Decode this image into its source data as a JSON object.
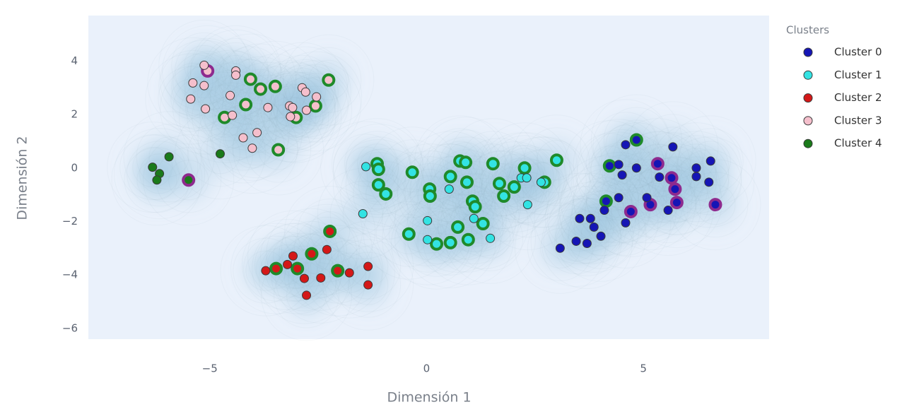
{
  "chart_data": {
    "type": "scatter",
    "x_label": "Dimensión 1",
    "y_label": "Dimensión 2",
    "legend_title": "Clusters",
    "xlim": [
      -7.8,
      7.9
    ],
    "ylim": [
      -6.4,
      5.7
    ],
    "xticks": [
      {
        "value": -5,
        "label": "−5"
      },
      0,
      5
    ],
    "yticks": [
      {
        "value": -6,
        "label": "−6"
      },
      {
        "value": -4,
        "label": "−4"
      },
      {
        "value": -2,
        "label": "−2"
      },
      0,
      2,
      4
    ],
    "grid": false,
    "legend": "right",
    "density_contours": true,
    "series": [
      {
        "name": "Cluster 0",
        "color": "#1515b5",
        "x": [
          4.59,
          4.84,
          4.22,
          4.43,
          4.51,
          4.84,
          5.68,
          5.33,
          5.65,
          5.37,
          6.22,
          6.55,
          6.22,
          6.51,
          5.73,
          5.77,
          6.66,
          5.16,
          4.71,
          4.14,
          4.43,
          5.08,
          4.1,
          3.78,
          3.53,
          3.86,
          4.59,
          4.02,
          3.7,
          3.45,
          3.08,
          5.57
        ],
        "y": [
          0.87,
          1.05,
          0.08,
          0.13,
          -0.26,
          0,
          0.79,
          0.16,
          -0.37,
          -0.34,
          0,
          0.26,
          -0.32,
          -0.53,
          -0.79,
          -1.29,
          -1.37,
          -1.37,
          -1.63,
          -1.24,
          -1.11,
          -1.11,
          -1.58,
          -1.89,
          -1.89,
          -2.21,
          -2.05,
          -2.55,
          -2.82,
          -2.74,
          -3.0,
          -1.58
        ],
        "rings": [
          null,
          "#1f8a2a",
          "#1f8a2a",
          null,
          null,
          null,
          null,
          "#8e2a8e",
          "#8e2a8e",
          null,
          null,
          null,
          null,
          null,
          "#8e2a8e",
          "#8e2a8e",
          "#8e2a8e",
          "#8e2a8e",
          "#8e2a8e",
          "#1f8a2a",
          null,
          null,
          null,
          null,
          null,
          null,
          null,
          null,
          null,
          null,
          null,
          null
        ]
      },
      {
        "name": "Cluster 1",
        "color": "#33e3e3",
        "x": [
          -1.14,
          -1.11,
          -0.33,
          0.07,
          0.08,
          -1.11,
          -0.94,
          0.55,
          0.77,
          0.9,
          0.93,
          1.53,
          1.68,
          1.78,
          2.02,
          2.26,
          2.72,
          3.0,
          1.06,
          1.12,
          1.3,
          0.72,
          -0.41,
          0.23,
          0.55,
          0.96,
          -1.4,
          0.52,
          2.18,
          2.31,
          2.33,
          -1.47,
          0.02,
          0.02,
          1.09,
          1.47,
          2.64
        ],
        "y": [
          0.16,
          -0.05,
          -0.16,
          -0.79,
          -1.05,
          -0.63,
          -0.97,
          -0.32,
          0.26,
          0.21,
          -0.53,
          0.16,
          -0.58,
          -1.05,
          -0.71,
          0,
          -0.53,
          0.29,
          -1.24,
          -1.45,
          -2.08,
          -2.21,
          -2.47,
          -2.84,
          -2.79,
          -2.68,
          0.05,
          -0.79,
          -0.37,
          -0.37,
          -1.37,
          -1.71,
          -1.97,
          -2.68,
          -1.89,
          -2.63,
          -0.53
        ],
        "rings": [
          "#1f8a2a",
          "#1f8a2a",
          "#1f8a2a",
          "#1f8a2a",
          "#1f8a2a",
          "#1f8a2a",
          "#1f8a2a",
          "#1f8a2a",
          "#1f8a2a",
          "#1f8a2a",
          "#1f8a2a",
          "#1f8a2a",
          "#1f8a2a",
          "#1f8a2a",
          "#1f8a2a",
          "#1f8a2a",
          "#1f8a2a",
          "#1f8a2a",
          "#1f8a2a",
          "#1f8a2a",
          "#1f8a2a",
          "#1f8a2a",
          "#1f8a2a",
          "#1f8a2a",
          "#1f8a2a",
          "#1f8a2a",
          null,
          null,
          null,
          null,
          null,
          null,
          null,
          null,
          null,
          null,
          null
        ]
      },
      {
        "name": "Cluster 2",
        "color": "#d41818",
        "x": [
          -2.23,
          -2.65,
          -2.98,
          -3.47,
          -2.05,
          -3.08,
          -3.21,
          -3.71,
          -2.3,
          -1.78,
          -1.35,
          -1.35,
          -2.44,
          -2.82,
          -2.77
        ],
        "y": [
          -2.37,
          -3.21,
          -3.76,
          -3.76,
          -3.84,
          -3.29,
          -3.61,
          -3.84,
          -3.05,
          -3.92,
          -3.68,
          -4.37,
          -4.11,
          -4.13,
          -4.76
        ],
        "rings": [
          "#1f8a2a",
          "#1f8a2a",
          "#1f8a2a",
          "#1f8a2a",
          "#1f8a2a",
          null,
          null,
          null,
          null,
          null,
          null,
          null,
          null,
          null,
          null
        ]
      },
      {
        "name": "Cluster 3",
        "color": "#f5bfcc",
        "x": [
          -4.06,
          -3.83,
          -3.49,
          -2.26,
          -4.17,
          -4.66,
          -3.01,
          -2.56,
          -3.42,
          -5.05,
          -5.13,
          -5.39,
          -5.13,
          -5.44,
          -5.1,
          -4.4,
          -4.4,
          -4.53,
          -3.66,
          -3.16,
          -2.87,
          -2.79,
          -3.09,
          -2.54,
          -2.77,
          -4.48,
          -3.14,
          -3.91,
          -4.23,
          -4.02
        ],
        "y": [
          3.32,
          2.95,
          3.05,
          3.29,
          2.37,
          1.89,
          1.89,
          2.32,
          0.68,
          3.63,
          3.84,
          3.18,
          3.08,
          2.58,
          2.21,
          3.63,
          3.47,
          2.71,
          2.26,
          2.32,
          3.0,
          2.84,
          2.26,
          2.66,
          2.16,
          1.97,
          1.92,
          1.32,
          1.13,
          0.74
        ],
        "rings": [
          "#1f8a2a",
          "#1f8a2a",
          "#1f8a2a",
          "#1f8a2a",
          "#1f8a2a",
          "#1f8a2a",
          "#1f8a2a",
          "#1f8a2a",
          "#1f8a2a",
          "#8e2a8e",
          null,
          null,
          null,
          null,
          null,
          null,
          null,
          null,
          null,
          null,
          null,
          null,
          null,
          null,
          null,
          null,
          null,
          null,
          null,
          null
        ]
      },
      {
        "name": "Cluster 4",
        "color": "#1a7a1a",
        "x": [
          -5.94,
          -6.32,
          -6.16,
          -6.22,
          -4.76,
          -5.49
        ],
        "y": [
          0.42,
          0.03,
          -0.21,
          -0.45,
          0.53,
          -0.45
        ],
        "rings": [
          null,
          null,
          null,
          null,
          null,
          "#8e2a8e"
        ]
      }
    ]
  }
}
